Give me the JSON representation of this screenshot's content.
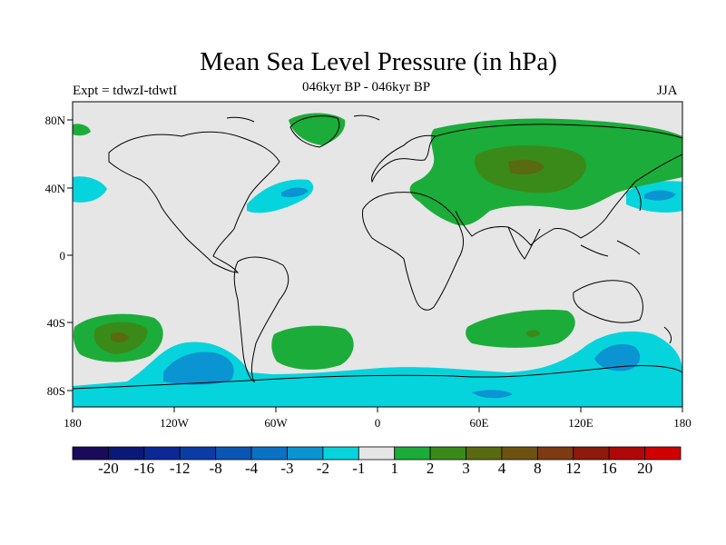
{
  "title": "Mean Sea Level Pressure (in hPa)",
  "subtitle_left": "Expt = tdwzI-tdwtI",
  "subtitle_center": "046kyr BP - 046kyr BP",
  "subtitle_right": "JJA",
  "lat_ticks": [
    "80N",
    "40N",
    "0",
    "40S",
    "80S"
  ],
  "lon_ticks": [
    "180",
    "120W",
    "60W",
    "0",
    "60E",
    "120E",
    "180"
  ],
  "colorbar": {
    "colors": [
      "#1a0a5a",
      "#0a1878",
      "#0b2896",
      "#0b3ca6",
      "#0a56b4",
      "#0a72c4",
      "#0a94d2",
      "#06d4dc",
      "#e6e6e6",
      "#1cac3a",
      "#3a8a1a",
      "#5a6a10",
      "#6e5210",
      "#7e3a10",
      "#8e1a0c",
      "#b00808",
      "#d00000"
    ],
    "labels": [
      "-20",
      "-16",
      "-12",
      "-8",
      "-4",
      "-3",
      "-2",
      "-1",
      "1",
      "2",
      "3",
      "4",
      "8",
      "12",
      "16",
      "20"
    ]
  },
  "colors": {
    "neutral": "#e6e6e6",
    "pos1": "#1cac3a",
    "pos2": "#3a8a1a",
    "pos3": "#5a6a10",
    "neg1": "#06d4dc",
    "neg2": "#0a94d2",
    "neg3": "#0a72c4"
  }
}
